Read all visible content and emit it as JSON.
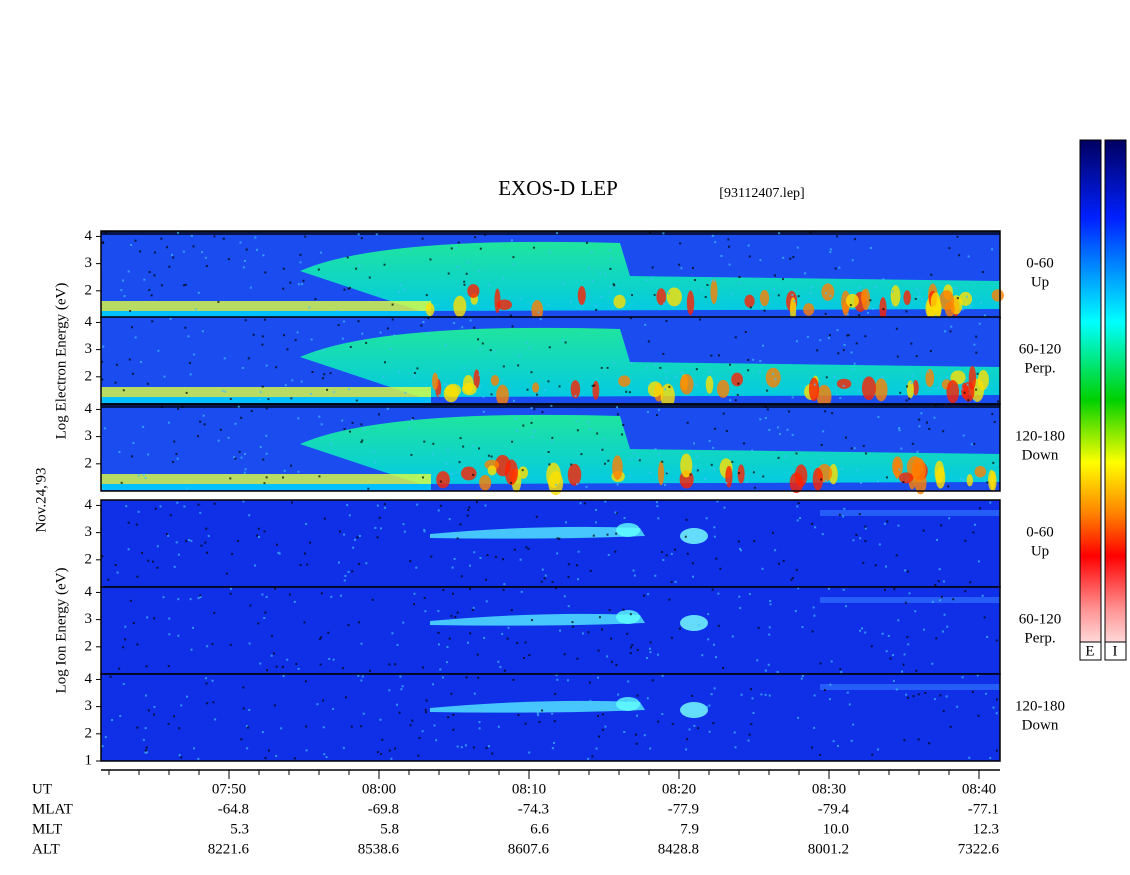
{
  "header": {
    "title": "EXOS-D LEP",
    "file": "[93112407.lep]"
  },
  "date": "Nov.24,'93",
  "ylim": [
    1,
    4.2
  ],
  "groups": [
    {
      "label": "Log Electron Energy (eV)",
      "panels": [
        {
          "range": "0-60",
          "direction": "Up",
          "yticks": [
            2,
            3,
            4
          ]
        },
        {
          "range": "60-120",
          "direction": "Perp.",
          "yticks": [
            2,
            3,
            4
          ]
        },
        {
          "range": "120-180",
          "direction": "Down",
          "yticks": [
            2,
            3,
            4
          ]
        }
      ]
    },
    {
      "label": "Log Ion Energy (eV)",
      "panels": [
        {
          "range": "0-60",
          "direction": "Up",
          "yticks": [
            2,
            3,
            4
          ]
        },
        {
          "range": "60-120",
          "direction": "Perp.",
          "yticks": [
            2,
            3,
            4
          ]
        },
        {
          "range": "120-180",
          "direction": "Down",
          "yticks": [
            1,
            2,
            3,
            4
          ]
        }
      ]
    }
  ],
  "xaxis": {
    "rows": [
      {
        "name": "UT",
        "values": [
          "07:50",
          "08:00",
          "08:10",
          "08:20",
          "08:30",
          "08:40"
        ]
      },
      {
        "name": "MLAT",
        "values": [
          "-64.8",
          "-69.8",
          "-74.3",
          "-77.9",
          "-79.4",
          "-77.1"
        ]
      },
      {
        "name": "MLT",
        "values": [
          "5.3",
          "5.8",
          "6.6",
          "7.9",
          "10.0",
          "12.3"
        ]
      },
      {
        "name": "ALT",
        "values": [
          "8221.6",
          "8538.6",
          "8607.6",
          "8428.8",
          "8001.2",
          "7322.6"
        ]
      }
    ]
  },
  "colorbars": [
    "E",
    "I"
  ]
}
